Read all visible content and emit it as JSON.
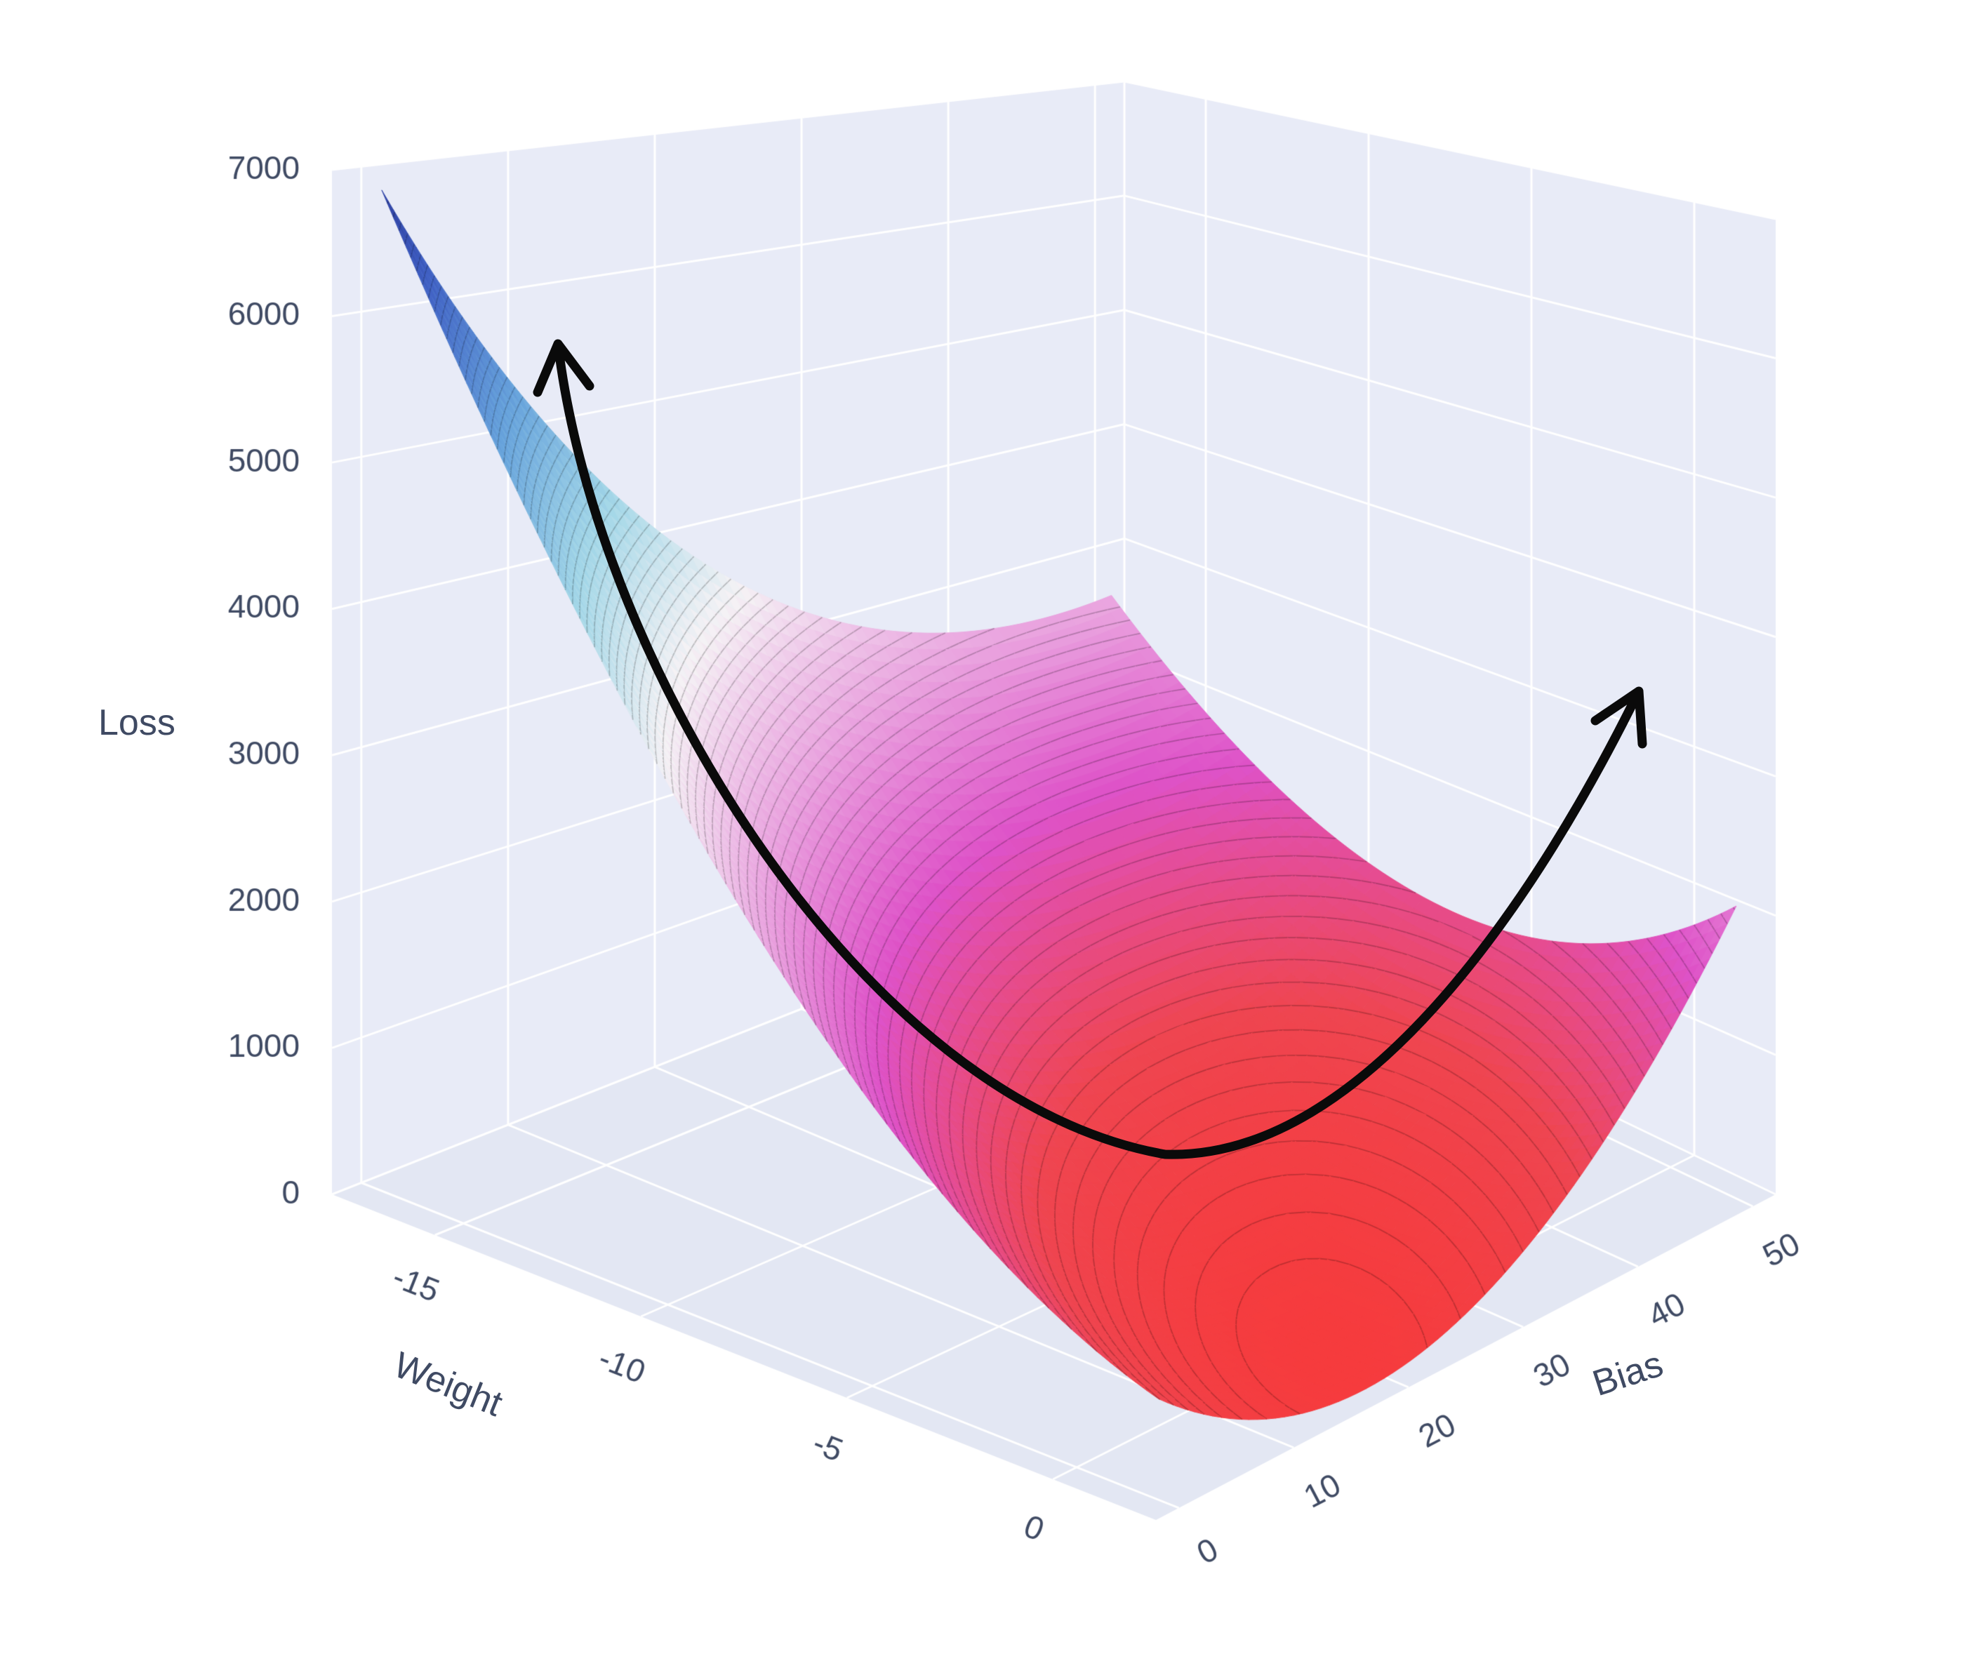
{
  "chart_data": {
    "type": "surface",
    "title": "",
    "axes": {
      "x": {
        "label": "Weight",
        "range": [
          -17.5,
          2.5
        ],
        "ticks": [
          -15,
          -10,
          -5,
          0
        ]
      },
      "y": {
        "label": "Bias",
        "range": [
          -2,
          52
        ],
        "ticks": [
          0,
          10,
          20,
          30,
          40,
          50
        ]
      },
      "z": {
        "label": "Loss",
        "range": [
          0,
          7000
        ],
        "ticks": [
          0,
          1000,
          2000,
          3000,
          4000,
          5000,
          6000,
          7000
        ]
      }
    },
    "surface": {
      "description": "Convex loss landscape (bowl/valley) over weight and bias for linear regression",
      "w_domain": [
        -17,
        2
      ],
      "b_domain": [
        0,
        50
      ],
      "model": {
        "type": "quadratic",
        "w_min_loss": 0.5,
        "b_min_loss": 20,
        "coef_ww": 13,
        "coef_bb": 2,
        "coef_wb": 6,
        "min_loss": 0
      },
      "corner_losses": {
        "weight_-17_bias_0": 6880,
        "weight_2_bias_0": 650,
        "weight_2_bias_50": 2100,
        "weight_-17_bias_50": 2325
      }
    },
    "colorscale": [
      [
        0.0,
        "#f63b3d"
      ],
      [
        0.1,
        "#ef4550"
      ],
      [
        0.24,
        "#de52c8"
      ],
      [
        0.36,
        "#e9a0de"
      ],
      [
        0.5,
        "#f5f2f5"
      ],
      [
        0.63,
        "#a5d8e8"
      ],
      [
        0.76,
        "#68a4dc"
      ],
      [
        0.9,
        "#4060c4"
      ],
      [
        1.0,
        "#2a3898"
      ]
    ],
    "contours": {
      "interval": 80
    },
    "legend": {
      "visible": false
    },
    "grid": {
      "visible": true
    },
    "annotations": [
      {
        "type": "curved-arrow",
        "color": "#0a0a0a",
        "description": "Black curved arrow tracing the valley of the loss surface with arrowheads at both ends pointing up the slopes"
      }
    ]
  },
  "theme": {
    "page_bg": "#ffffff",
    "panel_bg": "#e8ebf7",
    "floor_bg": "#e3e7f3",
    "grid_color": "#ffffff",
    "text_color": "#3f4a63",
    "arrow_color": "#0a0a0a"
  }
}
